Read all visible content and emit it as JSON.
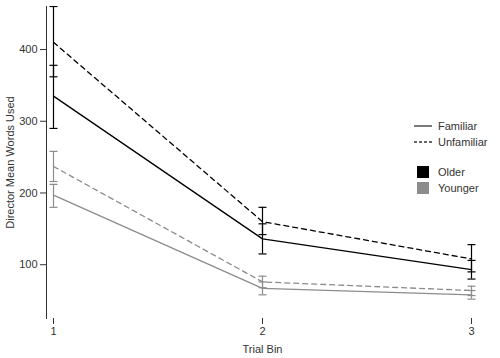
{
  "chart_data": {
    "type": "line",
    "x_label": "Trial Bin",
    "y_label": "Director Mean Words Used",
    "categories": [
      "1",
      "2",
      "3"
    ],
    "ylim": [
      25,
      460
    ],
    "yticks": [
      100,
      200,
      300,
      400
    ],
    "grid": false,
    "legend": "right",
    "series": [
      {
        "group": "Older",
        "condition": "Familiar",
        "color": "#000000",
        "line_style": "solid",
        "values": [
          335,
          136,
          93
        ],
        "error_low": [
          290,
          115,
          80
        ],
        "error_high": [
          378,
          157,
          106
        ]
      },
      {
        "group": "Older",
        "condition": "Unfamiliar",
        "color": "#000000",
        "line_style": "dashed",
        "values": [
          410,
          160,
          108
        ],
        "error_low": [
          362,
          142,
          90
        ],
        "error_high": [
          460,
          180,
          128
        ]
      },
      {
        "group": "Younger",
        "condition": "Familiar",
        "color": "#8c8c8c",
        "line_style": "solid",
        "values": [
          197,
          67,
          58
        ],
        "error_low": [
          180,
          58,
          52
        ],
        "error_high": [
          212,
          76,
          64
        ]
      },
      {
        "group": "Younger",
        "condition": "Unfamiliar",
        "color": "#8c8c8c",
        "line_style": "dashed",
        "values": [
          237,
          76,
          64
        ],
        "error_low": [
          216,
          68,
          57
        ],
        "error_high": [
          258,
          84,
          70
        ]
      }
    ]
  }
}
